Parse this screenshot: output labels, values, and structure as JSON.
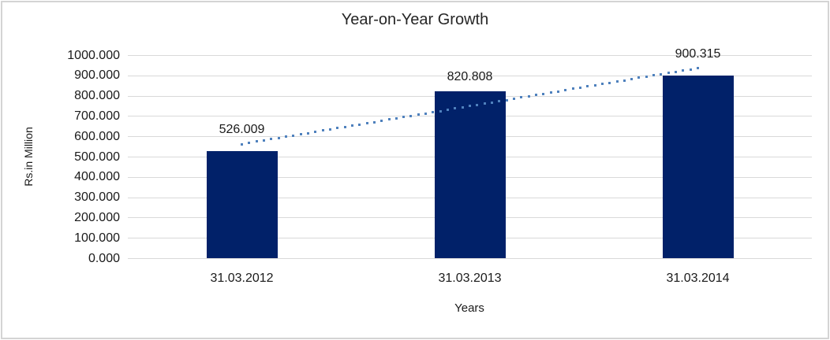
{
  "chart_data": {
    "type": "bar",
    "title": "Year-on-Year Growth",
    "xlabel": "Years",
    "ylabel": "Rs.in Million",
    "categories": [
      "31.03.2012",
      "31.03.2013",
      "31.03.2014"
    ],
    "values": [
      526.009,
      820.808,
      900.315
    ],
    "data_labels": [
      "526.009",
      "820.808",
      "900.315"
    ],
    "ylim": [
      0,
      1000
    ],
    "ytick_step": 100,
    "ytick_decimals": 3,
    "grid": true,
    "legend": false,
    "trendline": {
      "type": "linear",
      "style": "dotted"
    },
    "colors": {
      "bar": "#012169",
      "trendline": "#4f81bd",
      "gridline": "#d9d9d9",
      "text": "#1a1a1a",
      "frame_border": "#d4d4d4",
      "background": "#ffffff"
    }
  }
}
